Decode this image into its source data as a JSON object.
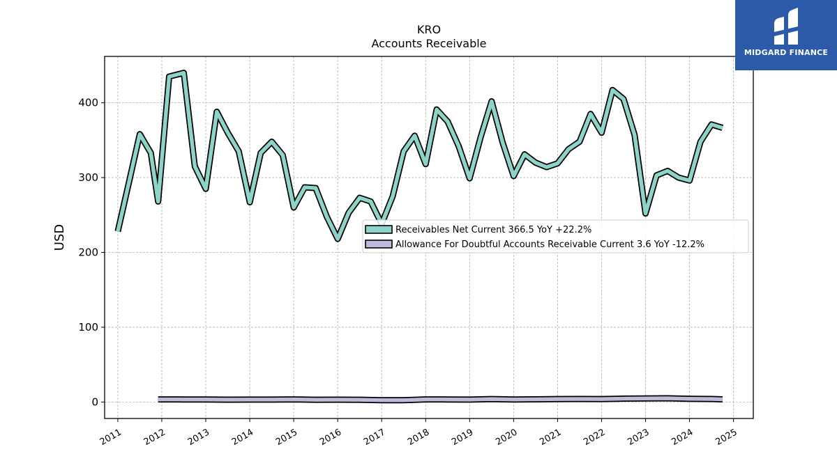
{
  "logo": {
    "text": "MIDGARD FINANCE",
    "icon": "midgard-logo-icon"
  },
  "chart_data": {
    "type": "line",
    "title": "KRO",
    "subtitle": "Accounts Receivable",
    "ylabel": "USD",
    "xlabel": "",
    "ylim": [
      -22,
      462
    ],
    "xlim": [
      2010.7,
      2025.45
    ],
    "yticks": [
      0,
      100,
      200,
      300,
      400
    ],
    "xticks": [
      "2011",
      "2012",
      "2013",
      "2014",
      "2015",
      "2016",
      "2017",
      "2018",
      "2019",
      "2020",
      "2021",
      "2022",
      "2023",
      "2024",
      "2025"
    ],
    "grid": true,
    "legend_position": "center-right",
    "series": [
      {
        "name": "Receivables Net Current",
        "legend": "Receivables Net Current  366.5 YoY +22.2%",
        "color": "#8dd3c7",
        "points": [
          [
            "2011-01",
            228
          ],
          [
            "2011-04",
            293
          ],
          [
            "2011-07",
            358
          ],
          [
            "2011-10",
            333
          ],
          [
            "2011-12",
            268
          ],
          [
            "2012-03",
            435
          ],
          [
            "2012-07",
            440
          ],
          [
            "2012-10",
            315
          ],
          [
            "2013-01",
            285
          ],
          [
            "2013-04",
            388
          ],
          [
            "2013-07",
            360
          ],
          [
            "2013-10",
            335
          ],
          [
            "2014-01",
            267
          ],
          [
            "2014-04",
            333
          ],
          [
            "2014-07",
            348
          ],
          [
            "2014-10",
            330
          ],
          [
            "2015-01",
            260
          ],
          [
            "2015-04",
            287
          ],
          [
            "2015-07",
            286
          ],
          [
            "2015-10",
            248
          ],
          [
            "2016-01",
            218
          ],
          [
            "2016-04",
            253
          ],
          [
            "2016-07",
            273
          ],
          [
            "2016-10",
            268
          ],
          [
            "2017-01",
            238
          ],
          [
            "2017-04",
            275
          ],
          [
            "2017-07",
            335
          ],
          [
            "2017-10",
            356
          ],
          [
            "2018-01",
            318
          ],
          [
            "2018-04",
            391
          ],
          [
            "2018-07",
            375
          ],
          [
            "2018-10",
            342
          ],
          [
            "2019-01",
            299
          ],
          [
            "2019-04",
            354
          ],
          [
            "2019-07",
            402
          ],
          [
            "2019-10",
            347
          ],
          [
            "2020-01",
            302
          ],
          [
            "2020-04",
            331
          ],
          [
            "2020-07",
            320
          ],
          [
            "2020-10",
            314
          ],
          [
            "2021-01",
            319
          ],
          [
            "2021-04",
            338
          ],
          [
            "2021-07",
            348
          ],
          [
            "2021-10",
            385
          ],
          [
            "2022-01",
            360
          ],
          [
            "2022-04",
            417
          ],
          [
            "2022-07",
            405
          ],
          [
            "2022-10",
            357
          ],
          [
            "2023-01",
            252
          ],
          [
            "2023-04",
            303
          ],
          [
            "2023-07",
            309
          ],
          [
            "2023-10",
            300
          ],
          [
            "2024-01",
            296
          ],
          [
            "2024-04",
            348
          ],
          [
            "2024-07",
            371
          ],
          [
            "2024-10",
            366.5
          ]
        ]
      },
      {
        "name": "Allowance For Doubtful Accounts Receivable Current",
        "legend": "Allowance For Doubtful Accounts Receivable Current  3.6 YoY -12.2%",
        "color": "#bebada",
        "points": [
          [
            "2011-12",
            3.5
          ],
          [
            "2012-07",
            3.4
          ],
          [
            "2013-01",
            3.3
          ],
          [
            "2013-07",
            3.1
          ],
          [
            "2014-01",
            3.2
          ],
          [
            "2014-07",
            3.2
          ],
          [
            "2015-01",
            3.5
          ],
          [
            "2015-07",
            3.0
          ],
          [
            "2016-01",
            3.1
          ],
          [
            "2016-07",
            3.0
          ],
          [
            "2017-01",
            2.5
          ],
          [
            "2017-07",
            2.4
          ],
          [
            "2018-01",
            3.5
          ],
          [
            "2018-07",
            3.4
          ],
          [
            "2019-01",
            3.2
          ],
          [
            "2019-07",
            4.0
          ],
          [
            "2020-01",
            3.3
          ],
          [
            "2020-07",
            3.6
          ],
          [
            "2021-01",
            4.0
          ],
          [
            "2021-07",
            4.1
          ],
          [
            "2022-01",
            4.0
          ],
          [
            "2022-07",
            4.5
          ],
          [
            "2023-01",
            4.8
          ],
          [
            "2023-07",
            5.0
          ],
          [
            "2024-01",
            4.3
          ],
          [
            "2024-07",
            4.1
          ],
          [
            "2024-10",
            3.6
          ]
        ]
      }
    ]
  }
}
